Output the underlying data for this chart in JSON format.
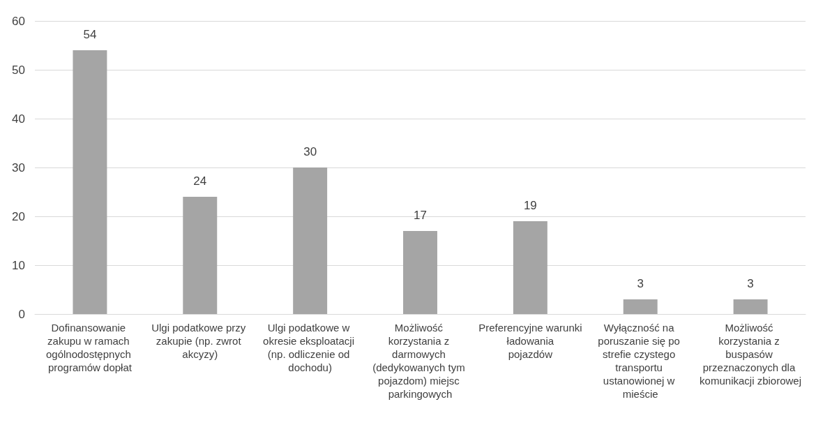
{
  "chart_data": {
    "type": "bar",
    "categories": [
      "Dofinansowanie zakupu w ramach ogólnodostępnych programów dopłat",
      "Ulgi podatkowe przy zakupie (np. zwrot akcyzy)",
      "Ulgi podatkowe w okresie eksploatacji (np. odliczenie od dochodu)",
      "Możliwość korzystania z darmowych (dedykowanych tym pojazdom) miejsc parkingowych",
      "Preferencyjne warunki ładowania pojazdów",
      "Wyłączność na poruszanie się po strefie czystego transportu ustanowionej w mieście",
      "Możliwość korzystania z buspasów przeznaczonych dla komunikacji zbiorowej"
    ],
    "values": [
      54,
      24,
      30,
      17,
      19,
      3,
      3
    ],
    "color": "#a5a5a5",
    "ylim": [
      0,
      60
    ],
    "yticks": [
      0,
      10,
      20,
      30,
      40,
      50,
      60
    ],
    "grid": "y",
    "data_labels": true
  }
}
